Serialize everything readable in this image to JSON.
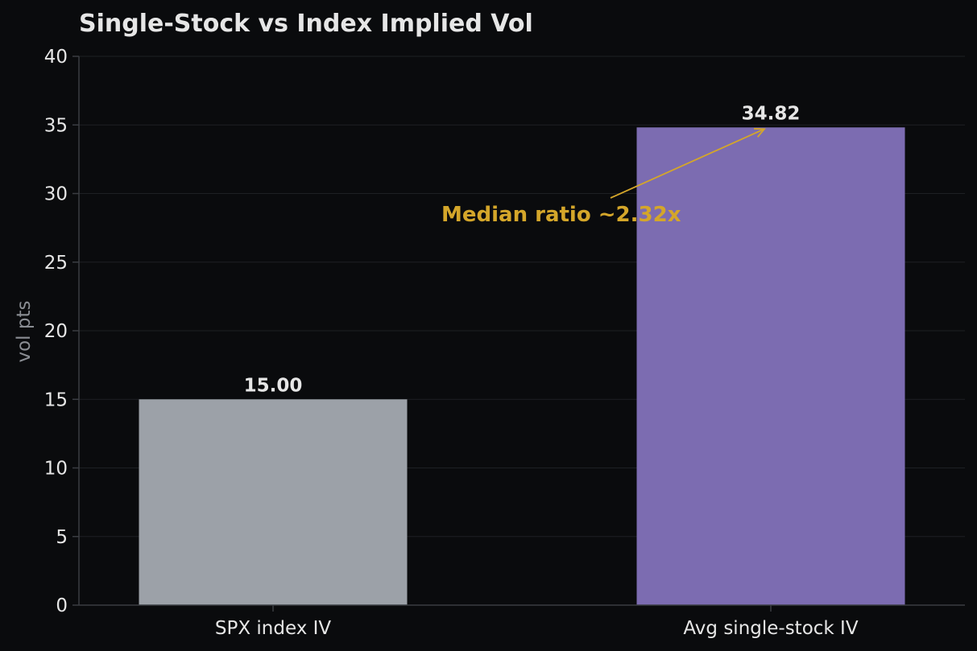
{
  "chart_data": {
    "type": "bar",
    "title": "Single-Stock vs Index Implied Vol",
    "xlabel": "",
    "ylabel": "vol pts",
    "categories": [
      "SPX index IV",
      "Avg single-stock IV"
    ],
    "values": [
      15.0,
      34.82
    ],
    "value_labels": [
      "15.00",
      "34.82"
    ],
    "bar_colors": [
      "#9ca1a8",
      "#7c6cb1"
    ],
    "ylim": [
      0,
      40
    ],
    "yticks": [
      0,
      5,
      10,
      15,
      20,
      25,
      30,
      35,
      40
    ],
    "grid": true,
    "legend": "none",
    "annotation": {
      "text": "Median ratio ~2.32x",
      "color": "#d4a62a",
      "points_to": {
        "category_index": 1,
        "y": 34.82
      }
    }
  },
  "colors": {
    "background": "#0a0b0d",
    "text": "#e6e6e6",
    "axis_label": "#8a8d93",
    "grid": "#1e2024",
    "spine": "#3a3d42",
    "accent": "#d4a62a"
  }
}
